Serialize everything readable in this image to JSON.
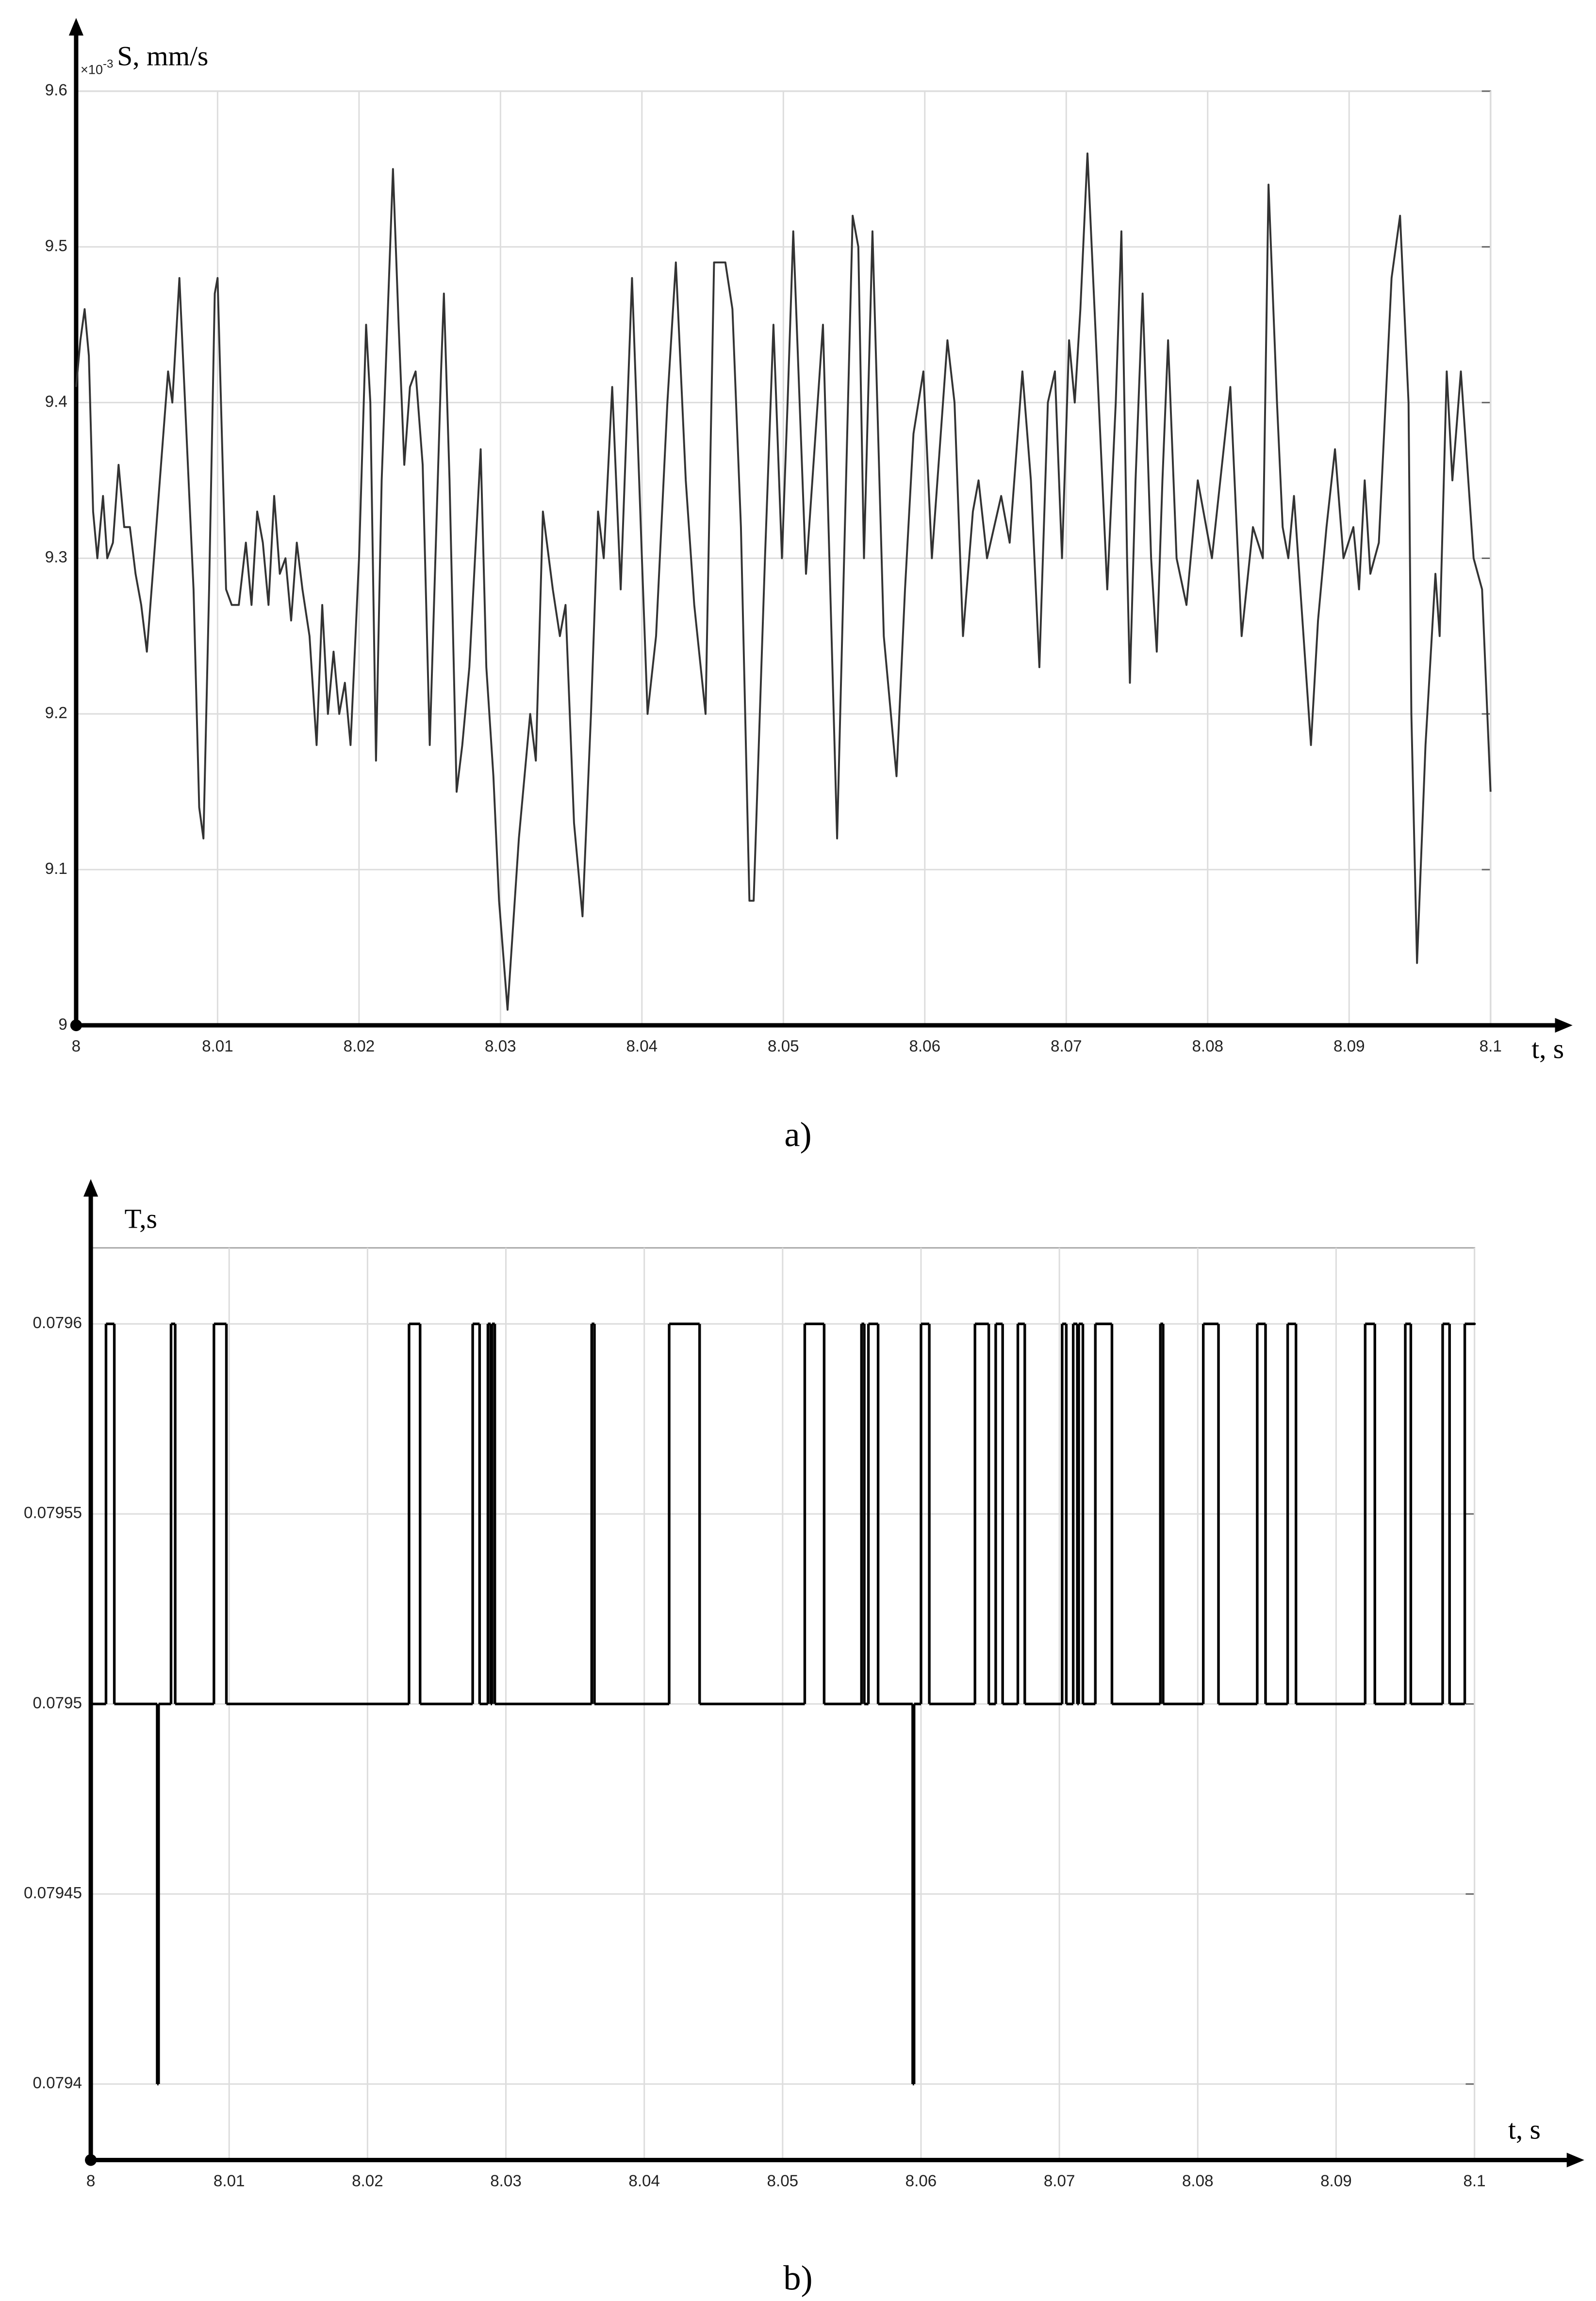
{
  "chart_data": [
    {
      "type": "line",
      "caption": "a)",
      "ylabel": "S, mm/s",
      "xlabel": "t, s",
      "y_multiplier": "×10",
      "y_exponent": "-3",
      "color": "#333333",
      "grid": true,
      "xlim": [
        8,
        8.1
      ],
      "ylim": [
        9,
        9.6
      ],
      "xticks": [
        8,
        8.01,
        8.02,
        8.03,
        8.04,
        8.05,
        8.06,
        8.07,
        8.08,
        8.09,
        8.1
      ],
      "yticks": [
        9,
        9.1,
        9.2,
        9.3,
        9.4,
        9.5,
        9.6
      ],
      "x": [
        8,
        8.0003,
        8.0006,
        8.0009,
        8.0012,
        8.0015,
        8.0019,
        8.0022,
        8.0026,
        8.003,
        8.0034,
        8.0038,
        8.0042,
        8.0046,
        8.005,
        8.0055,
        8.006,
        8.0065,
        8.0068,
        8.0073,
        8.0077,
        8.0083,
        8.0087,
        8.009,
        8.0094,
        8.0098,
        8.01,
        8.0103,
        8.0106,
        8.011,
        8.0115,
        8.012,
        8.0124,
        8.0128,
        8.0132,
        8.0136,
        8.014,
        8.0144,
        8.0148,
        8.0152,
        8.0156,
        8.016,
        8.0165,
        8.017,
        8.0174,
        8.0178,
        8.0182,
        8.0186,
        8.019,
        8.0194,
        8.02,
        8.0205,
        8.0208,
        8.0212,
        8.0216,
        8.022,
        8.0224,
        8.0228,
        8.0232,
        8.0236,
        8.024,
        8.0245,
        8.025,
        8.0254,
        8.0258,
        8.026,
        8.0264,
        8.0269,
        8.0273,
        8.0278,
        8.0282,
        8.0286,
        8.029,
        8.0295,
        8.0299,
        8.0305,
        8.0313,
        8.0321,
        8.0325,
        8.033,
        8.0337,
        8.0342,
        8.0346,
        8.0352,
        8.0358,
        8.0364,
        8.0369,
        8.0373,
        8.0379,
        8.0385,
        8.0393,
        8.04,
        8.0404,
        8.041,
        8.0418,
        8.0424,
        8.0431,
        8.0437,
        8.0445,
        8.0451,
        8.0459,
        8.0464,
        8.047,
        8.0476,
        8.0479,
        8.0487,
        8.0493,
        8.0499,
        8.0503,
        8.0507,
        8.0516,
        8.0528,
        8.0538,
        8.0549,
        8.0553,
        8.0557,
        8.0563,
        8.0571,
        8.058,
        8.0586,
        8.0592,
        8.0599,
        8.0605,
        8.0616,
        8.0621,
        8.0627,
        8.0634,
        8.0638,
        8.0644,
        8.0654,
        8.066,
        8.0669,
        8.0675,
        8.0681,
        8.0687,
        8.0692,
        8.0697,
        8.0702,
        8.0706,
        8.071,
        8.0715,
        8.0723,
        8.0729,
        8.0735,
        8.0739,
        8.0743,
        8.0745,
        8.0749,
        8.0754,
        8.076,
        8.0764,
        8.0768,
        8.0772,
        8.0778,
        8.0785,
        8.0793,
        8.0803,
        8.0816,
        8.0824,
        8.0832,
        8.0839,
        8.0843,
        8.0849,
        8.0853,
        8.0857,
        8.0861,
        8.0873,
        8.0878,
        8.0884,
        8.089,
        8.0896,
        8.0903,
        8.0907,
        8.0911,
        8.0915,
        8.0921,
        8.093,
        8.0936,
        8.0942,
        8.0944,
        8.0948,
        8.0954,
        8.0961,
        8.0964,
        8.0969,
        8.0973,
        8.0979,
        8.0988,
        8.0994,
        8.1
      ],
      "values": [
        9.41,
        9.44,
        9.46,
        9.43,
        9.33,
        9.3,
        9.34,
        9.3,
        9.31,
        9.36,
        9.32,
        9.32,
        9.29,
        9.27,
        9.24,
        9.3,
        9.36,
        9.42,
        9.4,
        9.48,
        9.4,
        9.28,
        9.14,
        9.12,
        9.28,
        9.47,
        9.48,
        9.38,
        9.28,
        9.27,
        9.27,
        9.31,
        9.27,
        9.33,
        9.31,
        9.27,
        9.34,
        9.29,
        9.3,
        9.26,
        9.31,
        9.28,
        9.25,
        9.18,
        9.27,
        9.2,
        9.24,
        9.2,
        9.22,
        9.18,
        9.3,
        9.45,
        9.4,
        9.17,
        9.35,
        9.45,
        9.55,
        9.45,
        9.36,
        9.41,
        9.42,
        9.36,
        9.18,
        9.3,
        9.42,
        9.47,
        9.35,
        9.15,
        9.18,
        9.23,
        9.3,
        9.37,
        9.23,
        9.16,
        9.08,
        9.01,
        9.12,
        9.2,
        9.17,
        9.33,
        9.28,
        9.25,
        9.27,
        9.13,
        9.07,
        9.2,
        9.33,
        9.3,
        9.41,
        9.28,
        9.48,
        9.3,
        9.2,
        9.25,
        9.4,
        9.49,
        9.35,
        9.27,
        9.2,
        9.49,
        9.49,
        9.46,
        9.32,
        9.08,
        9.08,
        9.3,
        9.45,
        9.3,
        9.4,
        9.51,
        9.29,
        9.45,
        9.12,
        9.52,
        9.5,
        9.3,
        9.51,
        9.25,
        9.16,
        9.28,
        9.38,
        9.42,
        9.3,
        9.44,
        9.4,
        9.25,
        9.33,
        9.35,
        9.3,
        9.34,
        9.31,
        9.42,
        9.35,
        9.23,
        9.4,
        9.42,
        9.3,
        9.44,
        9.4,
        9.46,
        9.56,
        9.4,
        9.28,
        9.4,
        9.51,
        9.3,
        9.22,
        9.35,
        9.47,
        9.3,
        9.24,
        9.35,
        9.44,
        9.3,
        9.27,
        9.35,
        9.3,
        9.41,
        9.25,
        9.32,
        9.3,
        9.54,
        9.4,
        9.32,
        9.3,
        9.34,
        9.18,
        9.26,
        9.32,
        9.37,
        9.3,
        9.32,
        9.28,
        9.35,
        9.29,
        9.31,
        9.48,
        9.52,
        9.4,
        9.2,
        9.04,
        9.18,
        9.29,
        9.25,
        9.42,
        9.35,
        9.42,
        9.3,
        9.28,
        9.15
      ]
    },
    {
      "type": "line",
      "step": "post",
      "caption": "b)",
      "ylabel": "T,s",
      "xlabel": "t, s",
      "color": "#000000",
      "grid": true,
      "xlim": [
        8,
        8.1
      ],
      "ylim": [
        0.07938,
        0.07962
      ],
      "xticks": [
        8,
        8.01,
        8.02,
        8.03,
        8.04,
        8.05,
        8.06,
        8.07,
        8.08,
        8.09,
        8.1
      ],
      "yticks": [
        0.0794,
        0.07945,
        0.0795,
        0.07955,
        0.0796
      ],
      "x": [
        8,
        8.0011,
        8.0017,
        8.0048,
        8.0049,
        8.0058,
        8.0061,
        8.0089,
        8.0098,
        8.023,
        8.0238,
        8.0276,
        8.0281,
        8.0287,
        8.0289,
        8.029,
        8.0292,
        8.0362,
        8.0364,
        8.0418,
        8.044,
        8.0516,
        8.053,
        8.0557,
        8.0559,
        8.0562,
        8.0569,
        8.0594,
        8.0595,
        8.06,
        8.0606,
        8.0639,
        8.0649,
        8.0654,
        8.0659,
        8.067,
        8.0675,
        8.0702,
        8.0705,
        8.071,
        8.0713,
        8.0714,
        8.0717,
        8.0726,
        8.0738,
        8.0773,
        8.0775,
        8.0804,
        8.0815,
        8.0843,
        8.0849,
        8.0865,
        8.0871,
        8.0921,
        8.0928,
        8.095,
        8.0954,
        8.0977,
        8.0982,
        8.0993,
        8.1
      ],
      "values": [
        0.0795,
        0.0796,
        0.0795,
        0.0794,
        0.0795,
        0.0796,
        0.0795,
        0.0796,
        0.0795,
        0.0796,
        0.0795,
        0.0796,
        0.0795,
        0.0796,
        0.0795,
        0.0796,
        0.0795,
        0.0796,
        0.0795,
        0.0796,
        0.0795,
        0.0796,
        0.0795,
        0.0796,
        0.0795,
        0.0796,
        0.0795,
        0.0794,
        0.0795,
        0.0796,
        0.0795,
        0.0796,
        0.0795,
        0.0796,
        0.0795,
        0.0796,
        0.0795,
        0.0796,
        0.0795,
        0.0796,
        0.0795,
        0.0796,
        0.0795,
        0.0796,
        0.0795,
        0.0796,
        0.0795,
        0.0796,
        0.0795,
        0.0796,
        0.0795,
        0.0796,
        0.0795,
        0.0796,
        0.0795,
        0.0796,
        0.0795,
        0.0796,
        0.0795,
        0.0796,
        0.0796
      ]
    }
  ]
}
